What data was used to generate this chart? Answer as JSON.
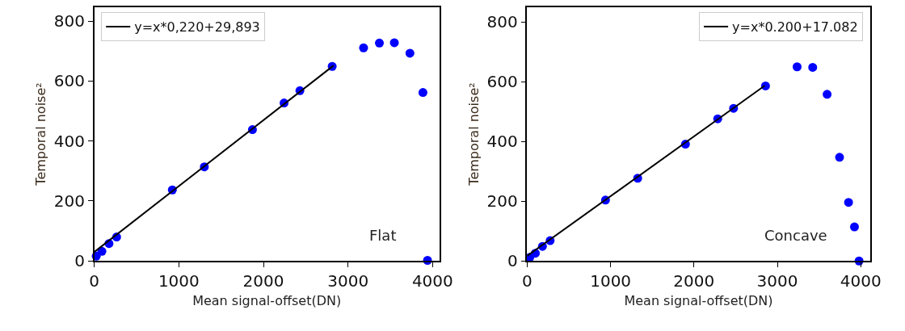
{
  "chart_data": [
    {
      "type": "scatter",
      "xlabel": "Mean signal-offset(DN)",
      "ylabel": "Temporal noise²",
      "annotations": [
        "Flat"
      ],
      "xlim": [
        0,
        4080
      ],
      "ylim": [
        0,
        847
      ],
      "xticks": [
        0,
        1000,
        2000,
        3000,
        4000
      ],
      "yticks": [
        0,
        200,
        400,
        600,
        800
      ],
      "legend": "top left",
      "series": [
        {
          "marker": "circle",
          "color": "#0000ff",
          "x": [
            23,
            90,
            174,
            264,
            923,
            1301,
            1870,
            2244,
            2431,
            2813,
            3184,
            3371,
            3548,
            3732,
            3886,
            3940
          ],
          "values": [
            16,
            32,
            58,
            80,
            237,
            314,
            438,
            527,
            568,
            649,
            711,
            727,
            728,
            693,
            562,
            2
          ]
        },
        {
          "type": "line",
          "marker": "none",
          "name": "y=x*0,220+29,893",
          "color": "#000000",
          "x": [
            0,
            2830
          ],
          "values": [
            30,
            652
          ]
        }
      ]
    },
    {
      "type": "scatter",
      "xlabel": "Mean signal-offset(DN)",
      "ylabel": "Temporal noise²",
      "annotations": [
        "Concave"
      ],
      "xlim": [
        0,
        4110
      ],
      "ylim": [
        0,
        850
      ],
      "xticks": [
        0,
        1000,
        2000,
        3000,
        4000
      ],
      "yticks": [
        0,
        200,
        400,
        600,
        800
      ],
      "legend": "top right",
      "series": [
        {
          "marker": "circle",
          "color": "#0000ff",
          "x": [
            31,
            98,
            183,
            275,
            939,
            1325,
            1898,
            2285,
            2475,
            2858,
            3237,
            3424,
            3597,
            3746,
            3854,
            3925,
            3980
          ],
          "values": [
            12,
            26,
            49,
            68,
            204,
            277,
            391,
            476,
            511,
            586,
            650,
            648,
            558,
            347,
            196,
            114,
            0
          ]
        },
        {
          "type": "line",
          "marker": "none",
          "name": "y=x*0.200+17.082",
          "color": "#000000",
          "x": [
            0,
            2850
          ],
          "values": [
            17,
            587
          ]
        }
      ]
    }
  ]
}
